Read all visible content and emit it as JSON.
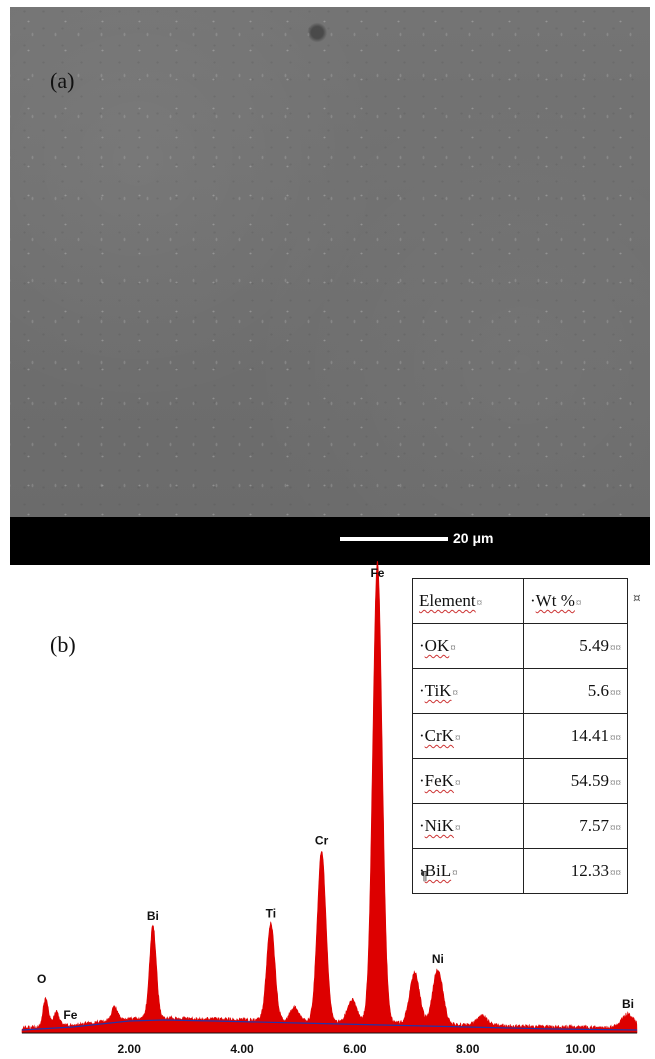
{
  "panel_a": {
    "label": "(a)",
    "scale_bar_label": "20 μm"
  },
  "panel_b": {
    "label": "(b)",
    "table": {
      "headers": [
        "Element",
        "Wt %"
      ],
      "rows": [
        {
          "element": "OK",
          "wt": "5.49"
        },
        {
          "element": "TiK",
          "wt": "5.6"
        },
        {
          "element": "CrK",
          "wt": "14.41"
        },
        {
          "element": "FeK",
          "wt": "54.59"
        },
        {
          "element": "NiK",
          "wt": "7.57"
        },
        {
          "element": "BiL",
          "wt": "12.33"
        }
      ],
      "format_marks": {
        "cell_end": "¤",
        "paragraph": "¶"
      }
    }
  },
  "chart_data": {
    "type": "area",
    "title": "",
    "xlabel": "",
    "ylabel": "",
    "xlim": [
      0.1,
      11.0
    ],
    "x_ticks": [
      "2.00",
      "4.00",
      "6.00",
      "8.00",
      "10.00"
    ],
    "x_tick_values": [
      2.0,
      4.0,
      6.0,
      8.0,
      10.0
    ],
    "series_color": "#dd0000",
    "background_color": "#2233aa",
    "background": [
      [
        0.1,
        3
      ],
      [
        1.0,
        6
      ],
      [
        2.0,
        12
      ],
      [
        2.6,
        13
      ],
      [
        3.5,
        12
      ],
      [
        5.0,
        10
      ],
      [
        6.5,
        8
      ],
      [
        8.0,
        6
      ],
      [
        9.5,
        4
      ],
      [
        11.0,
        3
      ]
    ],
    "peaks": [
      {
        "label": "O",
        "energy": 0.52,
        "relative_height": 0.06
      },
      {
        "label": "Fe",
        "energy": 0.71,
        "relative_height": 0.03
      },
      {
        "label": "Bi",
        "energy": 2.42,
        "relative_height": 0.2
      },
      {
        "label": "Ti",
        "energy": 4.51,
        "relative_height": 0.21
      },
      {
        "label": "Cr",
        "energy": 5.41,
        "relative_height": 0.37
      },
      {
        "label": "Fe",
        "energy": 6.4,
        "relative_height": 1.0
      },
      {
        "label": "Ni",
        "energy": 7.47,
        "relative_height": 0.12
      },
      {
        "label": "Bi",
        "energy": 10.84,
        "relative_height": 0.03
      }
    ],
    "minor_peaks": [
      {
        "energy": 1.74,
        "relative_height": 0.03
      },
      {
        "energy": 4.93,
        "relative_height": 0.03
      },
      {
        "energy": 5.95,
        "relative_height": 0.05
      },
      {
        "energy": 7.06,
        "relative_height": 0.11
      },
      {
        "energy": 8.26,
        "relative_height": 0.02
      }
    ]
  }
}
